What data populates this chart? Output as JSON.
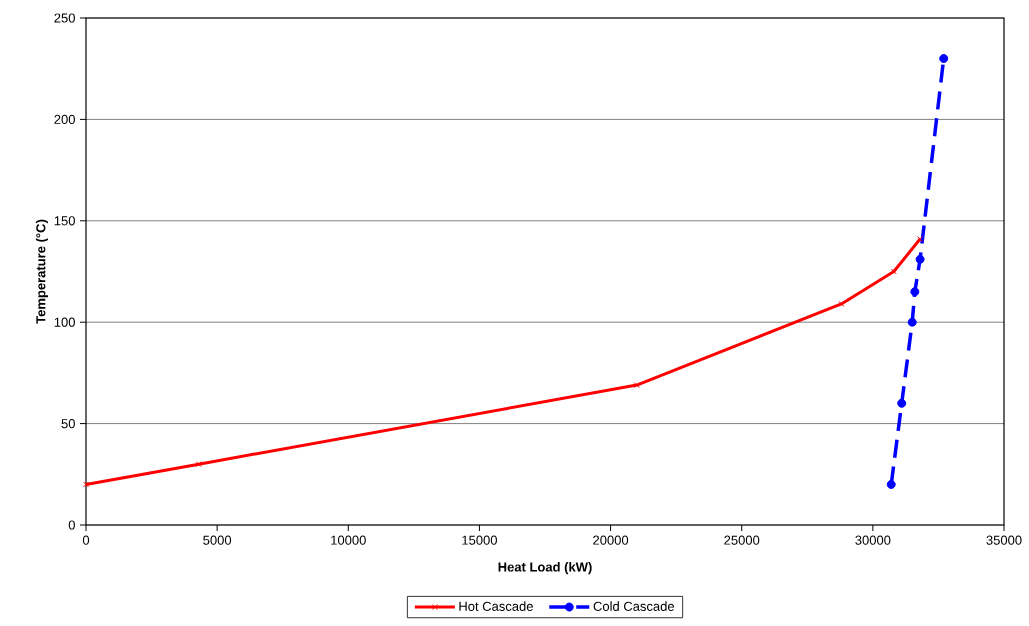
{
  "chart_data": {
    "type": "line",
    "xlabel": "Heat Load (kW)",
    "ylabel": "Temperature (°C)",
    "series": [
      {
        "name": "Hot Cascade",
        "color": "#ff0000",
        "x": [
          0,
          4300,
          21000,
          28800,
          30800,
          31800
        ],
        "values": [
          20,
          30,
          69,
          109,
          125,
          141
        ],
        "marker": "cross",
        "line_style": "solid"
      },
      {
        "name": "Cold Cascade",
        "color": "#0000ff",
        "x": [
          30700,
          31100,
          31500,
          31600,
          31800,
          32700
        ],
        "values": [
          20,
          60,
          100,
          115,
          131,
          230
        ],
        "marker": "circle",
        "line_style": "dashed"
      }
    ],
    "xlim": [
      0,
      35000
    ],
    "ylim": [
      0,
      250
    ],
    "xticks": [
      0,
      5000,
      10000,
      15000,
      20000,
      25000,
      30000,
      35000
    ],
    "yticks": [
      0,
      50,
      100,
      150,
      200,
      250
    ],
    "grid": "y",
    "legend": "bottom"
  }
}
